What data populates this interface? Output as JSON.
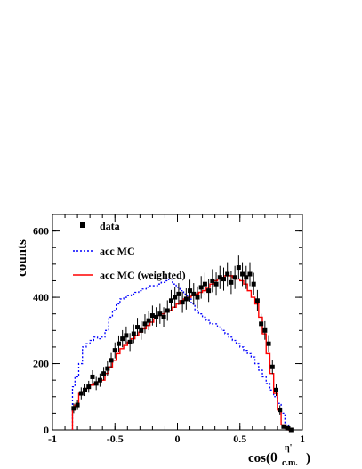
{
  "chart_data": {
    "type": "histogram",
    "ylabel": "counts",
    "xlabel": {
      "base": "cos(θ",
      "superscript": "η'",
      "subscript": "c.m.",
      "close": ")"
    },
    "xlim": [
      -1,
      1
    ],
    "ylim": [
      0,
      650
    ],
    "x_ticks": [
      -1,
      -0.5,
      0,
      0.5,
      1
    ],
    "x_tick_labels": [
      "-1",
      "-0.5",
      "0",
      "0.5",
      "1"
    ],
    "y_ticks": [
      0,
      200,
      400,
      600
    ],
    "y_tick_labels": [
      "0",
      "200",
      "400",
      "600"
    ],
    "legend": [
      {
        "label": "data",
        "style": "marker",
        "color": "#000000"
      },
      {
        "label": "acc MC",
        "style": "dotted",
        "color": "#0000ff"
      },
      {
        "label": "acc MC (weighted)",
        "style": "solid",
        "color": "#ff0000"
      }
    ],
    "legend_position": "top-left",
    "bin_edges": [
      -0.84,
      -0.82,
      -0.79,
      -0.76,
      -0.73,
      -0.7,
      -0.67,
      -0.64,
      -0.61,
      -0.58,
      -0.55,
      -0.52,
      -0.49,
      -0.46,
      -0.43,
      -0.4,
      -0.37,
      -0.34,
      -0.31,
      -0.28,
      -0.25,
      -0.22,
      -0.19,
      -0.16,
      -0.13,
      -0.1,
      -0.07,
      -0.04,
      -0.01,
      0.02,
      0.05,
      0.08,
      0.11,
      0.14,
      0.17,
      0.2,
      0.23,
      0.26,
      0.29,
      0.32,
      0.35,
      0.38,
      0.41,
      0.44,
      0.47,
      0.5,
      0.53,
      0.56,
      0.59,
      0.62,
      0.65,
      0.68,
      0.71,
      0.74,
      0.77,
      0.8,
      0.83,
      0.86,
      0.89,
      0.92
    ],
    "series": [
      {
        "name": "acc MC",
        "values": [
          130,
          160,
          200,
          250,
          260,
          270,
          280,
          275,
          280,
          300,
          340,
          360,
          380,
          395,
          400,
          405,
          410,
          415,
          420,
          425,
          430,
          435,
          435,
          440,
          445,
          450,
          455,
          440,
          430,
          420,
          410,
          395,
          380,
          360,
          350,
          340,
          330,
          320,
          320,
          310,
          300,
          290,
          280,
          270,
          260,
          250,
          240,
          230,
          220,
          200,
          180,
          160,
          140,
          120,
          100,
          80,
          50,
          15,
          5
        ]
      },
      {
        "name": "acc MC (weighted)",
        "values": [
          60,
          75,
          110,
          115,
          125,
          135,
          140,
          145,
          150,
          170,
          190,
          210,
          230,
          245,
          255,
          265,
          275,
          285,
          295,
          305,
          315,
          325,
          335,
          345,
          350,
          355,
          360,
          370,
          380,
          390,
          395,
          400,
          405,
          410,
          415,
          420,
          430,
          440,
          450,
          455,
          460,
          465,
          465,
          460,
          455,
          450,
          440,
          420,
          400,
          380,
          340,
          290,
          230,
          170,
          110,
          60,
          15,
          5,
          0
        ]
      },
      {
        "name": "data",
        "x": [
          -0.83,
          -0.8,
          -0.77,
          -0.74,
          -0.71,
          -0.68,
          -0.65,
          -0.62,
          -0.59,
          -0.56,
          -0.53,
          -0.5,
          -0.47,
          -0.44,
          -0.41,
          -0.38,
          -0.35,
          -0.32,
          -0.29,
          -0.26,
          -0.23,
          -0.2,
          -0.17,
          -0.14,
          -0.11,
          -0.08,
          -0.05,
          -0.02,
          0.01,
          0.04,
          0.07,
          0.1,
          0.13,
          0.16,
          0.19,
          0.22,
          0.25,
          0.28,
          0.31,
          0.34,
          0.37,
          0.4,
          0.43,
          0.46,
          0.49,
          0.52,
          0.55,
          0.58,
          0.61,
          0.64,
          0.67,
          0.7,
          0.73,
          0.76,
          0.79,
          0.82,
          0.85,
          0.88,
          0.91
        ],
        "y": [
          65,
          75,
          110,
          120,
          130,
          160,
          140,
          150,
          170,
          185,
          210,
          240,
          260,
          275,
          285,
          265,
          290,
          310,
          300,
          320,
          330,
          345,
          340,
          350,
          340,
          360,
          390,
          400,
          410,
          385,
          395,
          420,
          410,
          400,
          430,
          440,
          420,
          450,
          440,
          460,
          455,
          470,
          445,
          460,
          490,
          470,
          460,
          470,
          440,
          390,
          320,
          300,
          260,
          190,
          120,
          60,
          10,
          5,
          0
        ],
        "err": [
          15,
          15,
          18,
          18,
          18,
          20,
          20,
          20,
          20,
          22,
          22,
          24,
          25,
          26,
          27,
          27,
          28,
          28,
          28,
          29,
          29,
          30,
          30,
          30,
          30,
          31,
          32,
          32,
          33,
          32,
          32,
          33,
          33,
          33,
          34,
          34,
          34,
          35,
          35,
          35,
          35,
          36,
          35,
          35,
          36,
          36,
          35,
          36,
          34,
          32,
          30,
          28,
          26,
          22,
          18,
          14,
          5,
          4,
          2
        ]
      }
    ]
  }
}
